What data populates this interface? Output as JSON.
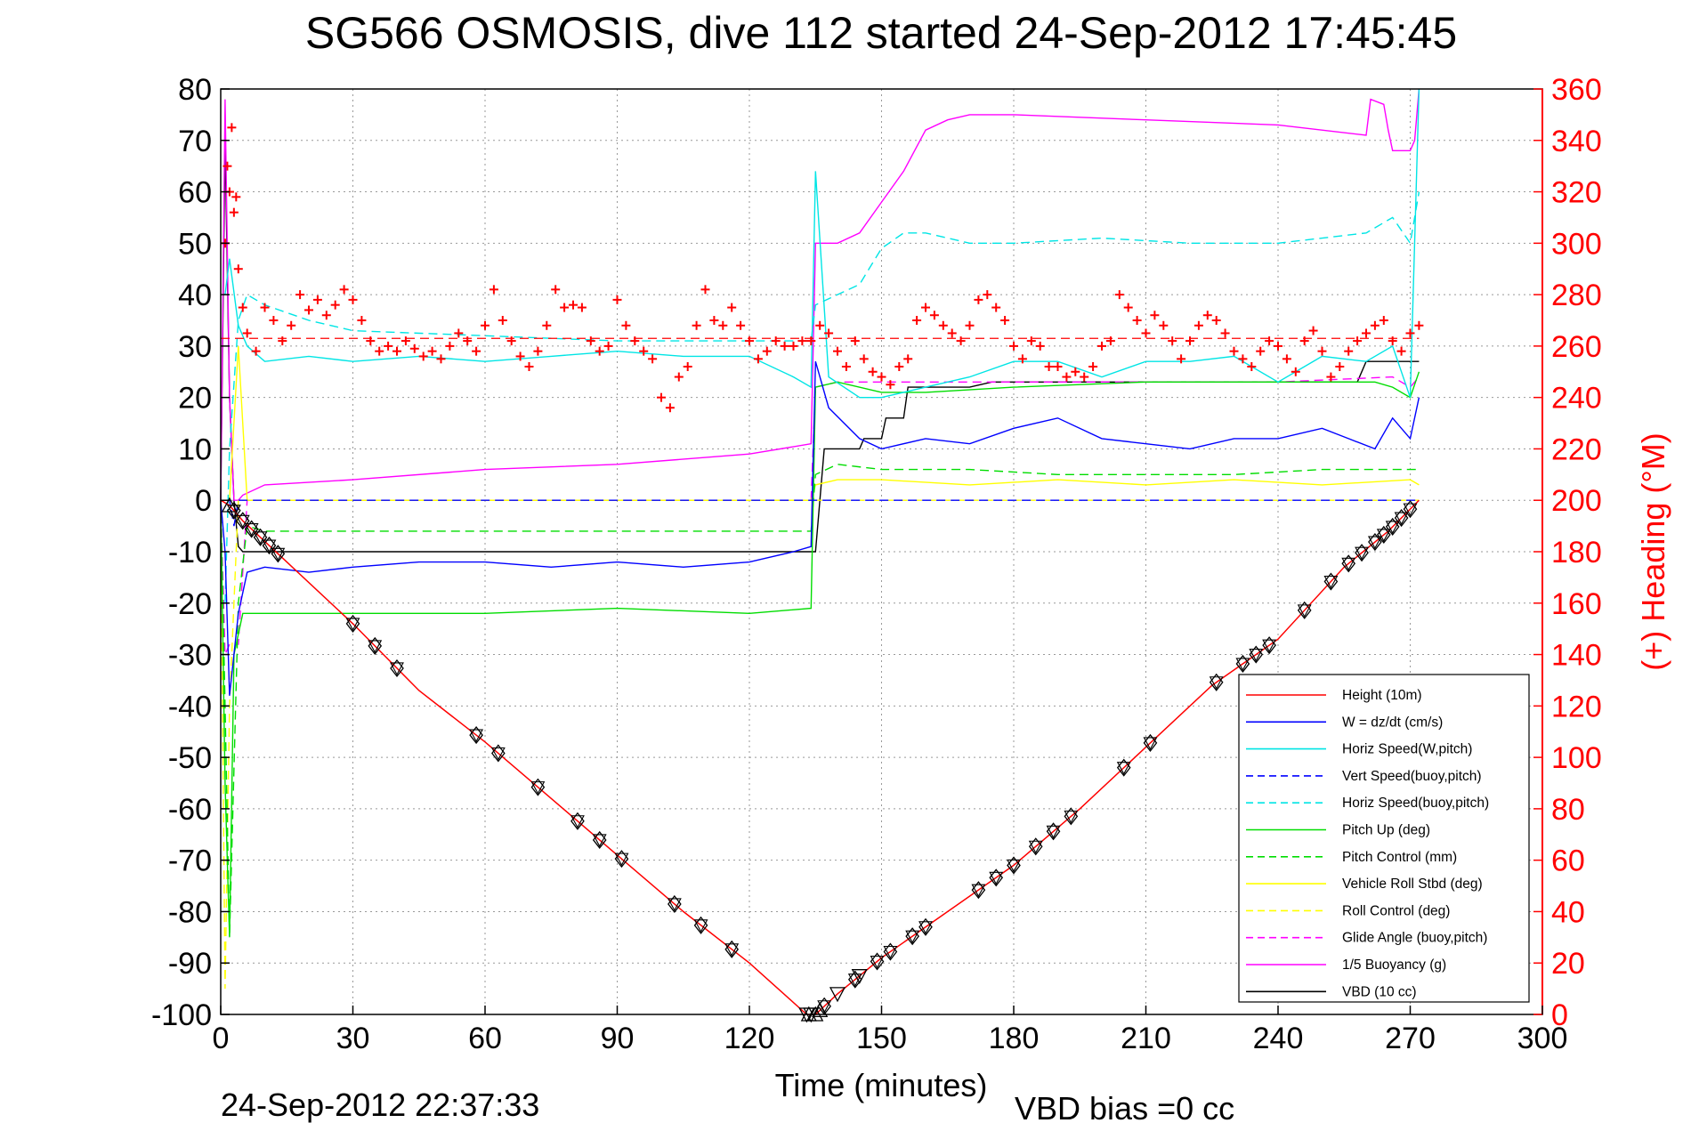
{
  "chart_data": {
    "type": "line",
    "title": "SG566 OSMOSIS, dive 112 started 24-Sep-2012 17:45:45",
    "xlabel": "Time (minutes)",
    "ylabel": "",
    "ylabel_right": "(+) Heading (°M)",
    "xlim": [
      0,
      300
    ],
    "ylim": [
      -100,
      80
    ],
    "ylim_right": [
      0,
      360
    ],
    "grid": true,
    "legend_position": "lower-right",
    "x_ticks": [
      "0",
      "30",
      "60",
      "90",
      "120",
      "150",
      "180",
      "210",
      "240",
      "270",
      "300"
    ],
    "y_ticks_left": [
      "80",
      "70",
      "60",
      "50",
      "40",
      "30",
      "20",
      "10",
      "0",
      "-10",
      "-20",
      "-30",
      "-40",
      "-50",
      "-60",
      "-70",
      "-80",
      "-90",
      "-100"
    ],
    "y_ticks_right": [
      "360",
      "340",
      "320",
      "300",
      "280",
      "260",
      "240",
      "220",
      "200",
      "180",
      "160",
      "140",
      "120",
      "100",
      "80",
      "60",
      "40",
      "20",
      "0"
    ],
    "footer_left": "24-Sep-2012 22:37:33",
    "footer_right": "VBD bias =0 cc",
    "series": [
      {
        "name": "Height (10m)",
        "color": "#ff0000",
        "style": "solid",
        "x": [
          0,
          2,
          5,
          10,
          15,
          30,
          45,
          60,
          75,
          90,
          105,
          120,
          133,
          135,
          140,
          150,
          165,
          180,
          195,
          210,
          225,
          240,
          255,
          265,
          272
        ],
        "y": [
          0,
          -1,
          -4,
          -8,
          -12,
          -24,
          -37,
          -47,
          -58,
          -69,
          -80,
          -90,
          -100,
          -100,
          -96,
          -89,
          -80,
          -71,
          -60,
          -48,
          -36,
          -27,
          -13,
          -6,
          0
        ]
      },
      {
        "name": "W = dz/dt (cm/s)",
        "color": "#0000ff",
        "style": "solid",
        "x": [
          0,
          1,
          2,
          4,
          6,
          10,
          20,
          30,
          45,
          60,
          75,
          90,
          105,
          120,
          130,
          134,
          135,
          138,
          145,
          150,
          160,
          170,
          180,
          190,
          200,
          210,
          220,
          230,
          240,
          250,
          256,
          262,
          266,
          270,
          272
        ],
        "y": [
          0,
          -10,
          -38,
          -22,
          -14,
          -13,
          -14,
          -13,
          -12,
          -12,
          -13,
          -12,
          -13,
          -12,
          -10,
          -9,
          27,
          18,
          12,
          10,
          12,
          11,
          14,
          16,
          12,
          11,
          10,
          12,
          12,
          14,
          12,
          10,
          16,
          12,
          20
        ]
      },
      {
        "name": "Horiz Speed(W,pitch)",
        "color": "#00e5e5",
        "style": "solid",
        "x": [
          1,
          2,
          4,
          6,
          10,
          20,
          30,
          45,
          60,
          75,
          90,
          105,
          120,
          130,
          134,
          135,
          138,
          145,
          150,
          160,
          170,
          180,
          190,
          200,
          210,
          220,
          230,
          240,
          250,
          260,
          266,
          270,
          272
        ],
        "y": [
          40,
          47,
          34,
          30,
          27,
          28,
          27,
          28,
          27,
          28,
          29,
          28,
          28,
          24,
          22,
          64,
          24,
          20,
          20,
          22,
          24,
          27,
          27,
          24,
          27,
          27,
          28,
          23,
          28,
          27,
          30,
          20,
          80
        ]
      },
      {
        "name": "Vert Speed(buoy,pitch)",
        "color": "#0000ff",
        "style": "dashed",
        "x": [
          1,
          2,
          3,
          4,
          6,
          10,
          30,
          60,
          90,
          120,
          134,
          135,
          140,
          150,
          180,
          210,
          240,
          270,
          272
        ],
        "y": [
          0,
          0,
          -5,
          0,
          0,
          0,
          0,
          0,
          0,
          0,
          0,
          0,
          0,
          0,
          0,
          0,
          0,
          0,
          0
        ]
      },
      {
        "name": "Horiz Speed(buoy,pitch)",
        "color": "#00e5e5",
        "style": "dashed",
        "x": [
          1,
          2,
          4,
          6,
          10,
          20,
          30,
          60,
          90,
          120,
          134,
          135,
          140,
          145,
          150,
          155,
          160,
          170,
          180,
          200,
          220,
          240,
          260,
          266,
          270,
          272
        ],
        "y": [
          -20,
          10,
          35,
          40,
          38,
          35,
          33,
          32,
          31,
          31,
          31,
          38,
          40,
          42,
          49,
          52,
          52,
          50,
          50,
          51,
          50,
          50,
          52,
          55,
          50,
          60
        ]
      },
      {
        "name": "Pitch Up (deg)",
        "color": "#00dd00",
        "style": "solid",
        "x": [
          0,
          1,
          2,
          3,
          5,
          10,
          30,
          60,
          90,
          120,
          134,
          135,
          140,
          150,
          160,
          180,
          210,
          240,
          262,
          266,
          270,
          272
        ],
        "y": [
          0,
          -55,
          -85,
          -30,
          -22,
          -22,
          -22,
          -22,
          -21,
          -22,
          -21,
          22,
          23,
          21,
          21,
          22,
          23,
          23,
          23,
          22,
          20,
          25
        ]
      },
      {
        "name": "Pitch Control (mm)",
        "color": "#00dd00",
        "style": "dashed",
        "x": [
          0,
          1,
          2,
          4,
          6,
          10,
          30,
          60,
          90,
          120,
          134,
          135,
          140,
          150,
          170,
          190,
          210,
          230,
          250,
          270,
          272
        ],
        "y": [
          0,
          -40,
          -85,
          -20,
          -5,
          -6,
          -6,
          -6,
          -6,
          -6,
          -6,
          5,
          7,
          6,
          6,
          5,
          5,
          5,
          6,
          6,
          6
        ]
      },
      {
        "name": "Vehicle Roll Stbd (deg)",
        "color": "#ffff00",
        "style": "solid",
        "x": [
          0,
          2,
          4,
          6,
          20,
          40,
          60,
          80,
          100,
          120,
          134,
          135,
          140,
          150,
          170,
          190,
          210,
          230,
          250,
          270,
          272
        ],
        "y": [
          0,
          0,
          30,
          0,
          0,
          0,
          0,
          0,
          0,
          0,
          0,
          3,
          4,
          4,
          3,
          4,
          3,
          4,
          3,
          4,
          3
        ]
      },
      {
        "name": "Roll Control (deg)",
        "color": "#ffff00",
        "style": "dashed",
        "x": [
          0,
          1,
          2,
          4,
          6,
          10,
          30,
          60,
          90,
          120,
          134,
          135,
          150,
          180,
          210,
          240,
          270,
          272
        ],
        "y": [
          0,
          -95,
          -40,
          0,
          0,
          0,
          0,
          0,
          0,
          0,
          0,
          0,
          0,
          0,
          0,
          0,
          0,
          0
        ]
      },
      {
        "name": "Glide Angle (buoy,pitch)",
        "color": "#ff00ff",
        "style": "dashed",
        "x": [
          0,
          1,
          2,
          4,
          6,
          10,
          30,
          60,
          90,
          120,
          134,
          135,
          140,
          150,
          180,
          210,
          240,
          266,
          270,
          272
        ],
        "y": [
          0,
          -30,
          -28,
          -28,
          0,
          0,
          0,
          0,
          0,
          0,
          0,
          22,
          23,
          23,
          23,
          23,
          23,
          24,
          22,
          24
        ]
      },
      {
        "name": "1/5 Buoyancy (g)",
        "color": "#ff00ff",
        "style": "solid",
        "x": [
          0,
          1,
          2,
          3,
          4,
          5,
          10,
          30,
          60,
          90,
          120,
          134,
          135,
          140,
          145,
          150,
          155,
          160,
          165,
          170,
          180,
          210,
          240,
          260,
          261,
          264,
          265,
          266,
          270,
          271,
          272
        ],
        "y": [
          0,
          78,
          20,
          0,
          0,
          1,
          3,
          4,
          6,
          7,
          9,
          11,
          50,
          50,
          52,
          58,
          64,
          72,
          74,
          75,
          75,
          74,
          73,
          71,
          78,
          77,
          72,
          68,
          68,
          70,
          80
        ]
      },
      {
        "name": "VBD (10 cc)",
        "color": "#000000",
        "style": "solid",
        "x": [
          0,
          1,
          2,
          3,
          4,
          5,
          134,
          135,
          136,
          137,
          145,
          146,
          150,
          151,
          155,
          156,
          160,
          161,
          170,
          175,
          185,
          200,
          220,
          240,
          258,
          260,
          270,
          272
        ],
        "y": [
          0,
          70,
          20,
          0,
          -9,
          -10,
          -10,
          -10,
          0,
          10,
          10,
          12,
          12,
          16,
          16,
          22,
          22,
          22,
          22,
          23,
          23,
          23,
          23,
          23,
          23,
          27,
          27,
          27
        ]
      }
    ],
    "heading": {
      "name": "Heading (+)",
      "color": "#ff0000",
      "axis": "right",
      "mean_line": 263,
      "x": [
        1,
        1.5,
        2,
        2.5,
        3,
        3.5,
        4,
        5,
        6,
        8,
        10,
        12,
        14,
        16,
        18,
        20,
        22,
        24,
        26,
        28,
        30,
        32,
        34,
        36,
        38,
        40,
        42,
        44,
        46,
        48,
        50,
        52,
        54,
        56,
        58,
        60,
        62,
        64,
        66,
        68,
        70,
        72,
        74,
        76,
        78,
        80,
        82,
        84,
        86,
        88,
        90,
        92,
        94,
        96,
        98,
        100,
        102,
        104,
        106,
        108,
        110,
        112,
        114,
        116,
        118,
        120,
        122,
        124,
        126,
        128,
        130,
        132,
        134,
        136,
        138,
        140,
        142,
        144,
        146,
        148,
        150,
        152,
        154,
        156,
        158,
        160,
        162,
        164,
        166,
        168,
        170,
        172,
        174,
        176,
        178,
        180,
        182,
        184,
        186,
        188,
        190,
        192,
        194,
        196,
        198,
        200,
        202,
        204,
        206,
        208,
        210,
        212,
        214,
        216,
        218,
        220,
        222,
        224,
        226,
        228,
        230,
        232,
        234,
        236,
        238,
        240,
        242,
        244,
        246,
        248,
        250,
        252,
        254,
        256,
        258,
        260,
        262,
        264,
        266,
        268,
        270,
        272
      ],
      "y": [
        300,
        330,
        320,
        345,
        312,
        318,
        290,
        275,
        265,
        258,
        275,
        270,
        262,
        268,
        280,
        274,
        278,
        272,
        276,
        282,
        278,
        270,
        262,
        258,
        260,
        258,
        262,
        259,
        256,
        258,
        255,
        260,
        265,
        262,
        258,
        268,
        282,
        270,
        262,
        256,
        252,
        258,
        268,
        282,
        275,
        276,
        275,
        262,
        258,
        260,
        278,
        268,
        262,
        258,
        255,
        240,
        236,
        248,
        252,
        268,
        282,
        270,
        268,
        275,
        268,
        262,
        255,
        258,
        262,
        260,
        260,
        262,
        262,
        268,
        265,
        258,
        252,
        262,
        255,
        250,
        248,
        245,
        252,
        255,
        270,
        275,
        272,
        268,
        265,
        262,
        268,
        278,
        280,
        275,
        270,
        260,
        255,
        262,
        260,
        252,
        252,
        248,
        250,
        248,
        252,
        260,
        262,
        280,
        275,
        270,
        265,
        272,
        268,
        262,
        255,
        262,
        268,
        272,
        270,
        265,
        258,
        255,
        252,
        258,
        262,
        260,
        255,
        250,
        262,
        266,
        258,
        248,
        252,
        258,
        262,
        265,
        268,
        270,
        262,
        258,
        265,
        268
      ]
    },
    "markers": {
      "diamond_x": [
        3,
        5,
        7,
        9,
        11,
        13,
        30,
        35,
        40,
        58,
        63,
        72,
        81,
        86,
        91,
        103,
        109,
        116,
        137,
        144,
        149,
        152,
        157,
        160,
        172,
        176,
        180,
        185,
        189,
        193,
        205,
        211,
        226,
        232,
        235,
        238,
        246,
        252,
        256,
        259,
        262,
        264,
        266,
        268,
        270
      ],
      "triangle_down_x": [
        133,
        134,
        140,
        145
      ],
      "triangle_up_x": [
        2,
        133.5,
        135,
        136
      ]
    }
  }
}
